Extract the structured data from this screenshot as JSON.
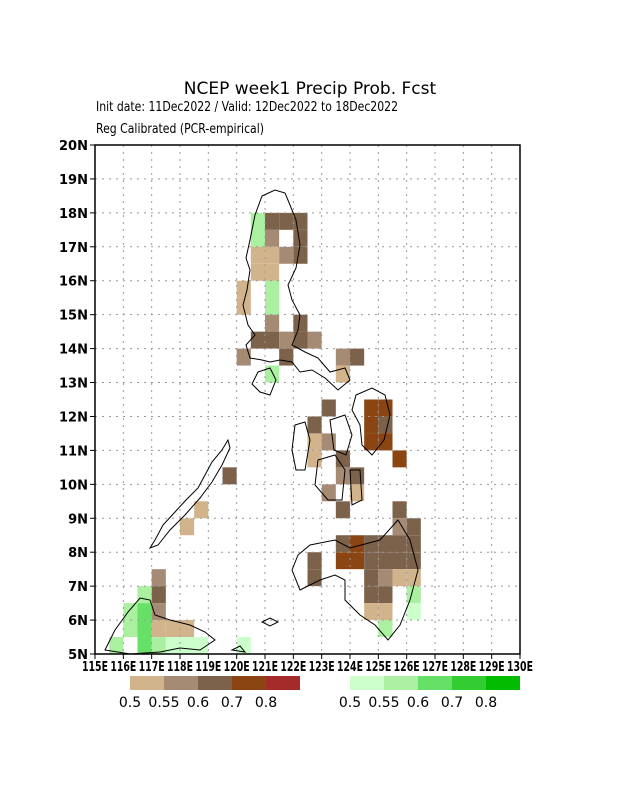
{
  "chart_data": {
    "type": "grid-map",
    "title": "NCEP week1 Precip Prob. Fcst",
    "subtitle": "Init date: 11Dec2022 / Valid: 12Dec2022 to 18Dec2022",
    "note": "Reg Calibrated (PCR-empirical)",
    "xlim": [
      115,
      130
    ],
    "ylim": [
      5,
      20
    ],
    "grid": true,
    "xticks": [
      {
        "value": 115,
        "label": "115E"
      },
      {
        "value": 116,
        "label": "116E"
      },
      {
        "value": 117,
        "label": "117E"
      },
      {
        "value": 118,
        "label": "118E"
      },
      {
        "value": 119,
        "label": "119E"
      },
      {
        "value": 120,
        "label": "120E"
      },
      {
        "value": 121,
        "label": "121E"
      },
      {
        "value": 122,
        "label": "122E"
      },
      {
        "value": 123,
        "label": "123E"
      },
      {
        "value": 124,
        "label": "124E"
      },
      {
        "value": 125,
        "label": "125E"
      },
      {
        "value": 126,
        "label": "126E"
      },
      {
        "value": 127,
        "label": "127E"
      },
      {
        "value": 128,
        "label": "128E"
      },
      {
        "value": 129,
        "label": "129E"
      },
      {
        "value": 130,
        "label": "130E"
      }
    ],
    "yticks": [
      {
        "value": 5,
        "label": "5N"
      },
      {
        "value": 6,
        "label": "6N"
      },
      {
        "value": 7,
        "label": "7N"
      },
      {
        "value": 8,
        "label": "8N"
      },
      {
        "value": 9,
        "label": "9N"
      },
      {
        "value": 10,
        "label": "10N"
      },
      {
        "value": 11,
        "label": "11N"
      },
      {
        "value": 12,
        "label": "12N"
      },
      {
        "value": 13,
        "label": "13N"
      },
      {
        "value": 14,
        "label": "14N"
      },
      {
        "value": 15,
        "label": "15N"
      },
      {
        "value": 16,
        "label": "16N"
      },
      {
        "value": 17,
        "label": "17N"
      },
      {
        "value": 18,
        "label": "18N"
      },
      {
        "value": 19,
        "label": "19N"
      },
      {
        "value": 20,
        "label": "20N"
      }
    ],
    "cell_size": 0.5,
    "levels": [
      0.5,
      0.55,
      0.6,
      0.7,
      0.8
    ],
    "below_colors": [
      "#d2b48c",
      "#a58a74",
      "#7d624b",
      "#8b4513",
      "#a52a2a"
    ],
    "above_colors": [
      "#ccffcc",
      "#aaf0a0",
      "#66e066",
      "#33cc33",
      "#00bb00"
    ],
    "below_cells": [
      [
        121,
        17.5,
        0.6
      ],
      [
        121.5,
        17.5,
        0.6
      ],
      [
        122,
        17.5,
        0.6
      ],
      [
        120.5,
        17,
        0.5
      ],
      [
        121,
        17,
        0.55
      ],
      [
        122,
        17,
        0.6
      ],
      [
        120.5,
        16.5,
        0.5
      ],
      [
        121,
        16.5,
        0.5
      ],
      [
        121.5,
        16.5,
        0.55
      ],
      [
        122,
        16.5,
        0.6
      ],
      [
        120.5,
        16,
        0.5
      ],
      [
        121,
        16,
        0.5
      ],
      [
        120,
        15.5,
        0.5
      ],
      [
        121,
        15.5,
        0.5
      ],
      [
        120,
        15,
        0.5
      ],
      [
        121,
        15,
        0.5
      ],
      [
        121,
        14.5,
        0.55
      ],
      [
        122,
        14.5,
        0.6
      ],
      [
        120.5,
        14,
        0.6
      ],
      [
        121,
        14,
        0.6
      ],
      [
        121.5,
        14,
        0.55
      ],
      [
        122,
        14,
        0.6
      ],
      [
        122.5,
        14,
        0.55
      ],
      [
        120,
        13.5,
        0.55
      ],
      [
        121.5,
        13.5,
        0.6
      ],
      [
        123.5,
        13.5,
        0.55
      ],
      [
        124,
        13.5,
        0.6
      ],
      [
        123.5,
        13,
        0.5
      ],
      [
        123,
        12,
        0.6
      ],
      [
        124.5,
        12,
        0.7
      ],
      [
        125,
        12,
        0.7
      ],
      [
        122.5,
        11.5,
        0.6
      ],
      [
        124.5,
        11.5,
        0.7
      ],
      [
        125,
        11.5,
        0.6
      ],
      [
        122.5,
        11,
        0.5
      ],
      [
        123,
        11,
        0.55
      ],
      [
        124.5,
        11,
        0.7
      ],
      [
        125,
        11,
        0.7
      ],
      [
        122.5,
        10.5,
        0.5
      ],
      [
        123.5,
        10.5,
        0.6
      ],
      [
        125.5,
        10.5,
        0.7
      ],
      [
        119.5,
        10,
        0.6
      ],
      [
        123.5,
        10,
        0.55
      ],
      [
        124,
        10,
        0.6
      ],
      [
        123,
        9.5,
        0.55
      ],
      [
        124,
        9.5,
        0.5
      ],
      [
        118.5,
        9,
        0.5
      ],
      [
        123.5,
        9,
        0.6
      ],
      [
        125.5,
        9,
        0.6
      ],
      [
        118,
        8.5,
        0.5
      ],
      [
        125.5,
        8.5,
        0.55
      ],
      [
        126,
        8.5,
        0.6
      ],
      [
        123.5,
        8,
        0.6
      ],
      [
        124,
        8,
        0.7
      ],
      [
        124.5,
        8,
        0.6
      ],
      [
        125,
        8,
        0.6
      ],
      [
        125.5,
        8,
        0.6
      ],
      [
        126,
        8,
        0.6
      ],
      [
        122.5,
        7.5,
        0.6
      ],
      [
        123.5,
        7.5,
        0.7
      ],
      [
        124,
        7.5,
        0.7
      ],
      [
        124.5,
        7.5,
        0.6
      ],
      [
        125,
        7.5,
        0.6
      ],
      [
        125.5,
        7.5,
        0.6
      ],
      [
        126,
        7.5,
        0.6
      ],
      [
        122.5,
        7,
        0.6
      ],
      [
        117,
        7,
        0.55
      ],
      [
        124.5,
        7,
        0.6
      ],
      [
        125,
        7,
        0.55
      ],
      [
        125.5,
        7,
        0.5
      ],
      [
        126,
        7,
        0.5
      ],
      [
        117,
        6.5,
        0.6
      ],
      [
        124.5,
        6.5,
        0.6
      ],
      [
        125,
        6.5,
        0.6
      ],
      [
        117,
        6,
        0.55
      ],
      [
        124.5,
        6,
        0.5
      ],
      [
        125,
        6,
        0.5
      ],
      [
        117,
        5.5,
        0.5
      ],
      [
        117.5,
        5.5,
        0.5
      ],
      [
        118,
        5.5,
        0.5
      ]
    ],
    "above_cells": [
      [
        120.5,
        17.5,
        0.55
      ],
      [
        120.5,
        17,
        0.55
      ],
      [
        121,
        15.5,
        0.55
      ],
      [
        121,
        15,
        0.55
      ],
      [
        121,
        13,
        0.55
      ],
      [
        126,
        6.5,
        0.55
      ],
      [
        126,
        6,
        0.5
      ],
      [
        125,
        5.5,
        0.55
      ],
      [
        116.5,
        6.5,
        0.55
      ],
      [
        116,
        6,
        0.55
      ],
      [
        116.5,
        6,
        0.6
      ],
      [
        116.5,
        5.5,
        0.6
      ],
      [
        116,
        5.5,
        0.55
      ],
      [
        115.5,
        5,
        0.55
      ],
      [
        116.5,
        5,
        0.6
      ],
      [
        117,
        5,
        0.55
      ],
      [
        117.5,
        5,
        0.5
      ],
      [
        118,
        5,
        0.5
      ],
      [
        118.5,
        5,
        0.5
      ],
      [
        120,
        5,
        0.5
      ]
    ]
  }
}
